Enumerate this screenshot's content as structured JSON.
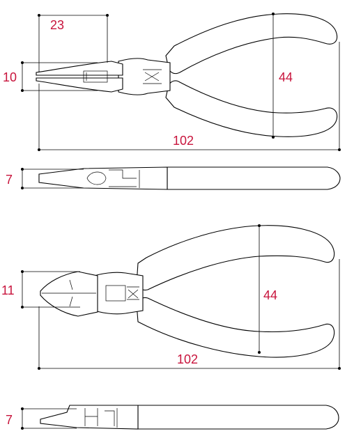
{
  "figure_1": {
    "name": "Needle nose pliers",
    "dims": {
      "tip_length": "23",
      "tip_height": "10",
      "handle_span": "44",
      "overall_length": "102",
      "thickness": "7"
    }
  },
  "figure_2": {
    "name": "Diagonal cutting pliers",
    "dims": {
      "head_height": "11",
      "handle_span": "44",
      "overall_length": "102",
      "thickness": "7"
    }
  },
  "colors": {
    "dimension_text": "#c8143c",
    "lines": "#000000",
    "background": "#ffffff"
  }
}
